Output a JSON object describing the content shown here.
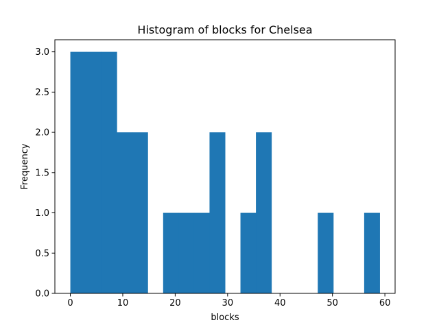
{
  "chart_data": {
    "type": "bar",
    "title": "Histogram of blocks for Chelsea",
    "xlabel": "blocks",
    "ylabel": "Frequency",
    "bins": [
      {
        "start": 0.0,
        "end": 2.95,
        "count": 3
      },
      {
        "start": 2.95,
        "end": 5.9,
        "count": 3
      },
      {
        "start": 5.9,
        "end": 8.85,
        "count": 3
      },
      {
        "start": 8.85,
        "end": 11.8,
        "count": 2
      },
      {
        "start": 11.8,
        "end": 14.75,
        "count": 2
      },
      {
        "start": 14.75,
        "end": 17.7,
        "count": 0
      },
      {
        "start": 17.7,
        "end": 20.65,
        "count": 1
      },
      {
        "start": 20.65,
        "end": 23.6,
        "count": 1
      },
      {
        "start": 23.6,
        "end": 26.55,
        "count": 1
      },
      {
        "start": 26.55,
        "end": 29.5,
        "count": 2
      },
      {
        "start": 29.5,
        "end": 32.45,
        "count": 0
      },
      {
        "start": 32.45,
        "end": 35.4,
        "count": 1
      },
      {
        "start": 35.4,
        "end": 38.35,
        "count": 2
      },
      {
        "start": 38.35,
        "end": 41.3,
        "count": 0
      },
      {
        "start": 41.3,
        "end": 44.25,
        "count": 0
      },
      {
        "start": 44.25,
        "end": 47.2,
        "count": 0
      },
      {
        "start": 47.2,
        "end": 50.15,
        "count": 1
      },
      {
        "start": 50.15,
        "end": 53.1,
        "count": 0
      },
      {
        "start": 53.1,
        "end": 56.05,
        "count": 0
      },
      {
        "start": 56.05,
        "end": 59.0,
        "count": 1
      }
    ],
    "xlim": [
      -2.95,
      61.95
    ],
    "ylim": [
      0,
      3.15
    ],
    "xticks": [
      0,
      10,
      20,
      30,
      40,
      50,
      60
    ],
    "xtick_labels": [
      "0",
      "10",
      "20",
      "30",
      "40",
      "50",
      "60"
    ],
    "yticks": [
      0,
      0.5,
      1.0,
      1.5,
      2.0,
      2.5,
      3.0
    ],
    "ytick_labels": [
      "0.0",
      "0.5",
      "1.0",
      "1.5",
      "2.0",
      "2.5",
      "3.0"
    ],
    "bar_color": "#1f77b4",
    "grid": false,
    "legend": "none"
  }
}
